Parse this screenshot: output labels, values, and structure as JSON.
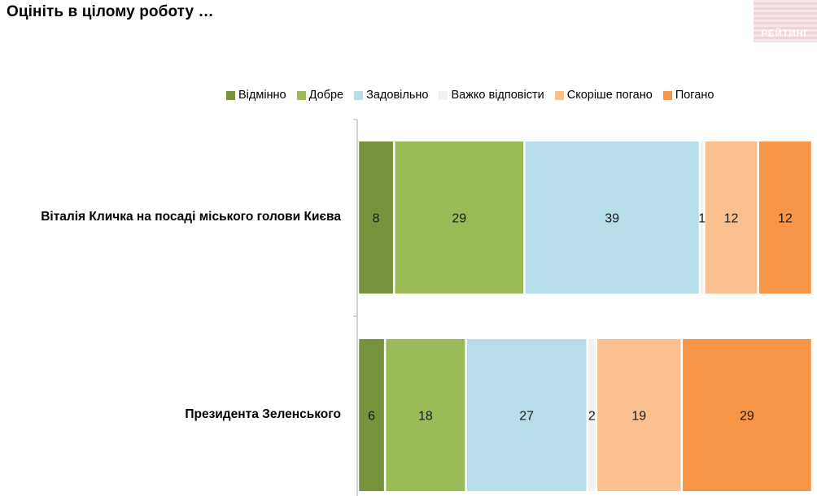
{
  "title": "Оцініть в цілому роботу …",
  "logo": {
    "text": "РЕЙТИНГ"
  },
  "chart_data": {
    "type": "bar",
    "orientation": "horizontal",
    "stacked": true,
    "categories": [
      "Віталія Кличка на посаді міського голови Києва",
      "Президента Зеленського"
    ],
    "series": [
      {
        "name": "Відмінно",
        "color": "#77933c",
        "values": [
          8,
          6
        ]
      },
      {
        "name": "Добре",
        "color": "#9bbb59",
        "values": [
          29,
          18
        ]
      },
      {
        "name": "Задовільно",
        "color": "#b7dde8",
        "values": [
          39,
          27
        ]
      },
      {
        "name": "Важко відповісти",
        "color": "#f2f2f2",
        "values": [
          1,
          2
        ]
      },
      {
        "name": "Скоріше погано",
        "color": "#fac090",
        "values": [
          12,
          19
        ]
      },
      {
        "name": "Погано",
        "color": "#f79646",
        "values": [
          12,
          29
        ]
      }
    ],
    "legend_position": "top",
    "grid": false
  }
}
